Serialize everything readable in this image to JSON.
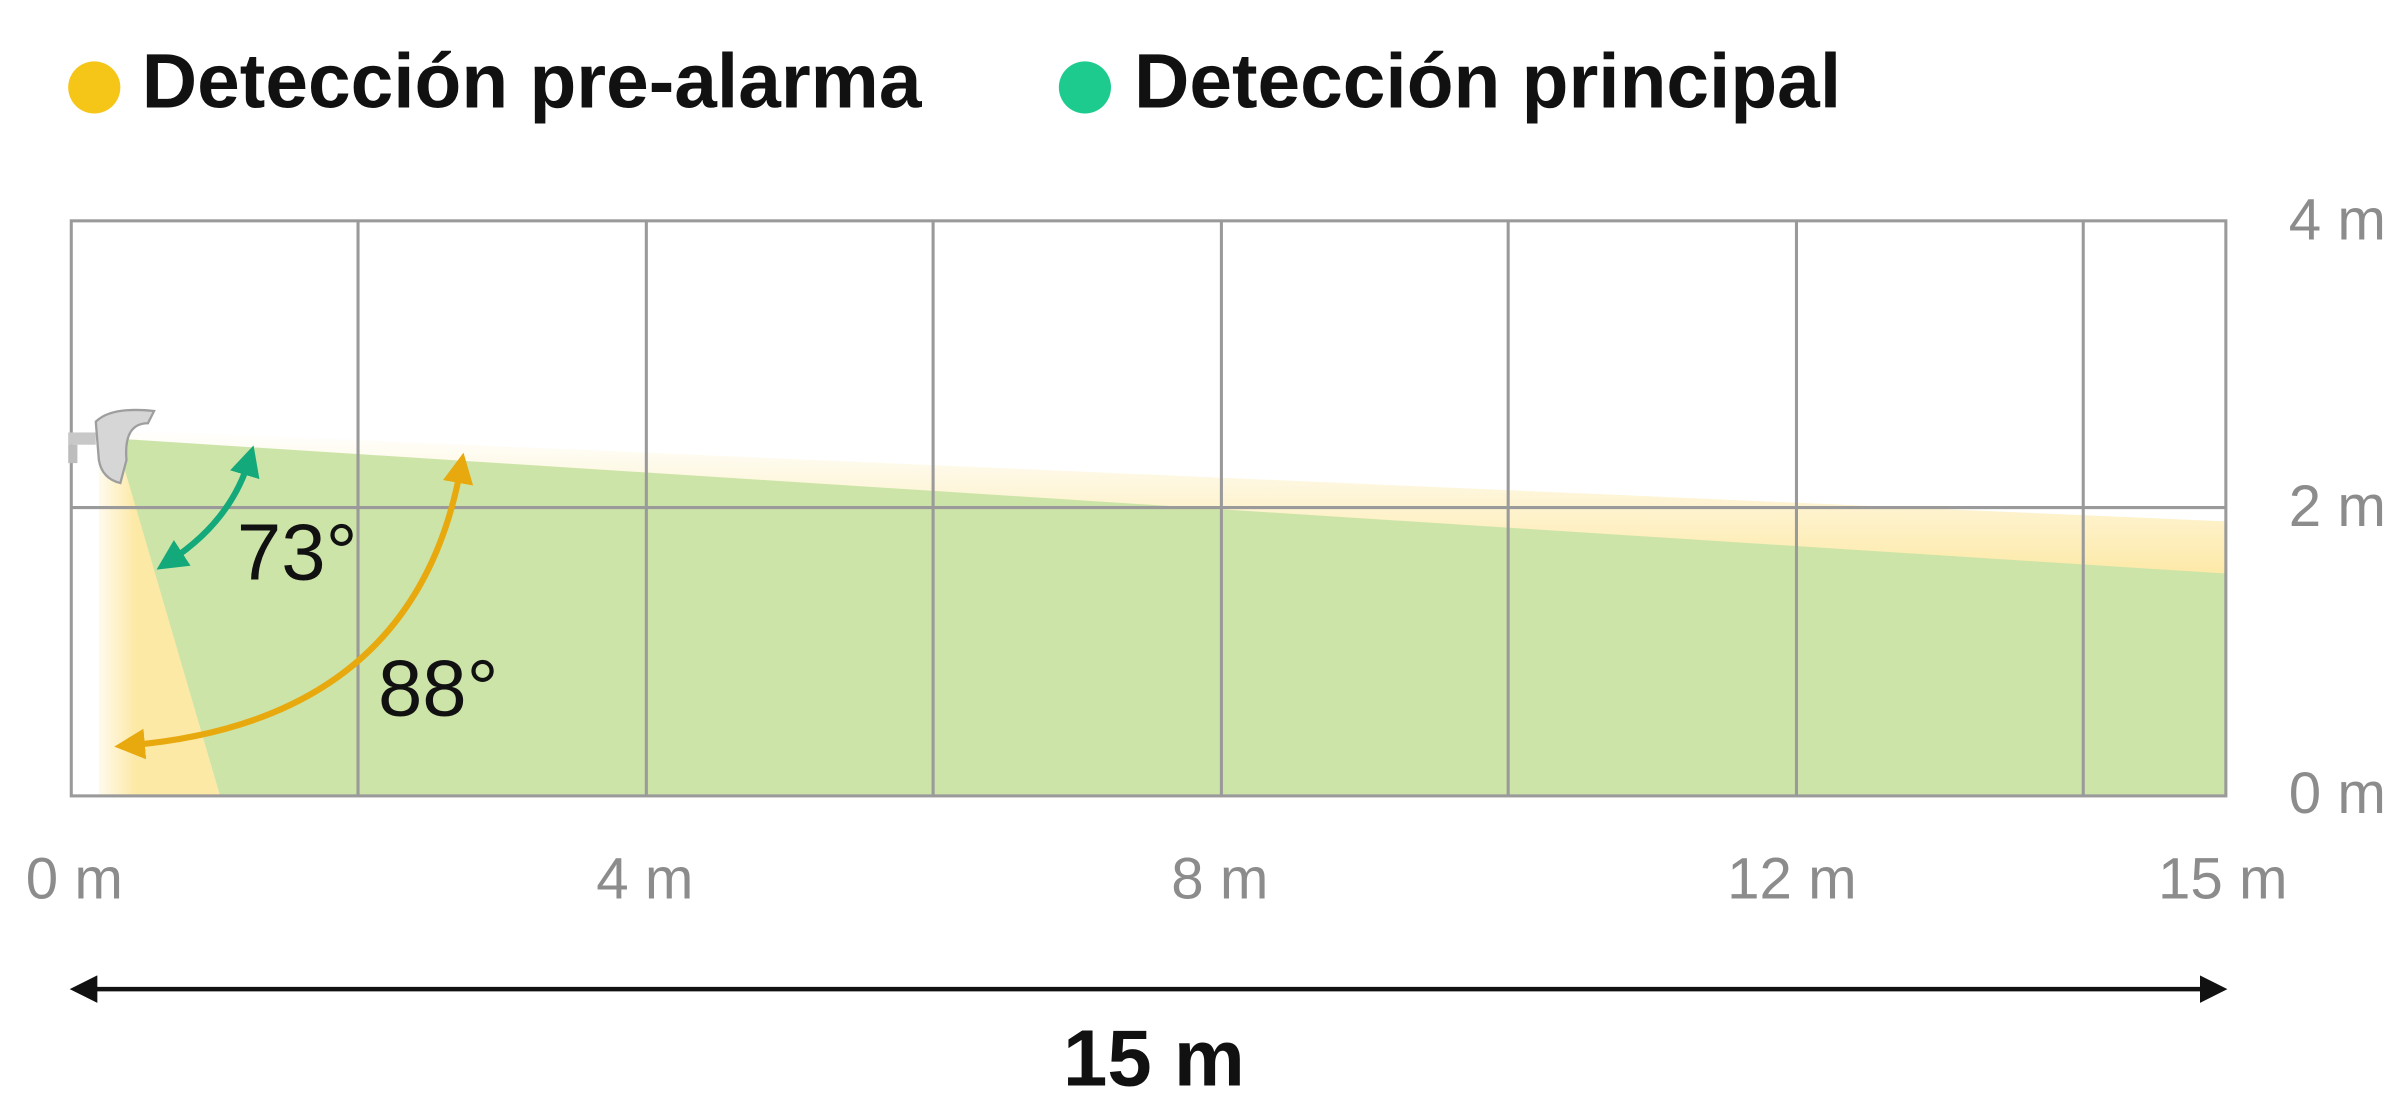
{
  "legend": [
    {
      "label": "Detección pre-alarma",
      "color": "#f5c518"
    },
    {
      "label": "Detección principal",
      "color": "#1ecb8e"
    }
  ],
  "y_labels": [
    "4 m",
    "2 m",
    "0 m"
  ],
  "x_labels": [
    "0 m",
    "4 m",
    "8 m",
    "12 m",
    "15 m"
  ],
  "angles": [
    "73°",
    "88°"
  ],
  "dimension": "15 m"
}
